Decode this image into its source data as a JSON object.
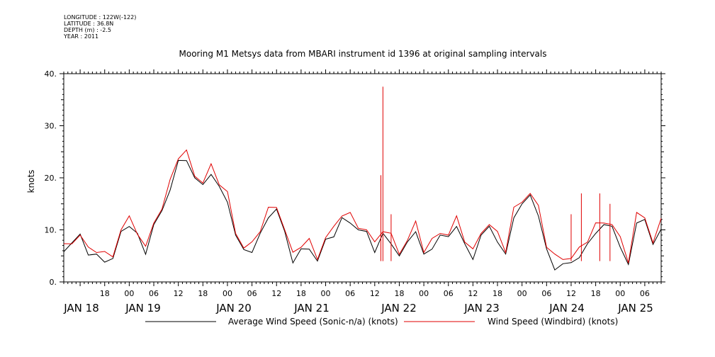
{
  "metadata": {
    "longitude": "LONGITUDE : 122W(-122)",
    "latitude": "LATITUDE : 36.8N",
    "depth": "DEPTH (m) : -2.5",
    "year": "YEAR : 2011"
  },
  "chart_data": {
    "type": "line",
    "title": "Mooring M1 Metsys data from MBARI instrument id 1396 at original sampling intervals",
    "ylabel": "knots",
    "xlabel": "",
    "ylim": [
      0,
      40
    ],
    "yticks": [
      0,
      10,
      20,
      30,
      40
    ],
    "ytick_labels": [
      "0.",
      "10.",
      "20.",
      "30.",
      "40."
    ],
    "xlim_hours": [
      -4,
      142
    ],
    "hour_labels": [
      {
        "h": 6,
        "label": "18"
      },
      {
        "h": 12,
        "label": "00"
      },
      {
        "h": 18,
        "label": "06"
      },
      {
        "h": 24,
        "label": "12"
      },
      {
        "h": 30,
        "label": "18"
      },
      {
        "h": 36,
        "label": "00"
      },
      {
        "h": 42,
        "label": "06"
      },
      {
        "h": 48,
        "label": "12"
      },
      {
        "h": 54,
        "label": "18"
      },
      {
        "h": 60,
        "label": "00"
      },
      {
        "h": 66,
        "label": "06"
      },
      {
        "h": 72,
        "label": "12"
      },
      {
        "h": 78,
        "label": "18"
      },
      {
        "h": 84,
        "label": "00"
      },
      {
        "h": 90,
        "label": "06"
      },
      {
        "h": 96,
        "label": "12"
      },
      {
        "h": 102,
        "label": "18"
      },
      {
        "h": 108,
        "label": "00"
      },
      {
        "h": 114,
        "label": "06"
      },
      {
        "h": 120,
        "label": "12"
      },
      {
        "h": 126,
        "label": "18"
      },
      {
        "h": 132,
        "label": "00"
      },
      {
        "h": 138,
        "label": "06"
      },
      {
        "h": 144,
        "label": "12"
      }
    ],
    "day_labels": [
      {
        "h": 0,
        "label": "JAN 18"
      },
      {
        "h": 24,
        "label": "JAN 19"
      },
      {
        "h": 48,
        "label": "JAN 20"
      },
      {
        "h": 72,
        "label": "JAN 21"
      },
      {
        "h": 96,
        "label": "JAN 22"
      },
      {
        "h": 120,
        "label": "JAN 23"
      },
      {
        "h": 144,
        "label": "JAN 24"
      },
      {
        "h": 168,
        "label": "JAN 25"
      }
    ],
    "series": [
      {
        "name": "Average Wind Speed (Sonic-n/a) (knots)",
        "color": "#000000",
        "x": [
          -4,
          -2,
          0,
          2,
          4,
          6,
          8,
          10,
          12,
          14,
          16,
          18,
          20,
          22,
          24,
          26,
          28,
          30,
          32,
          34,
          36,
          38,
          40,
          42,
          44,
          46,
          48,
          50,
          52,
          54,
          56,
          58,
          60,
          62,
          64,
          66,
          68,
          70,
          72,
          74,
          76,
          78,
          80,
          82,
          84,
          86,
          88,
          90,
          92,
          94,
          96,
          98,
          100,
          102,
          104,
          106,
          108,
          110,
          112,
          114,
          116,
          118,
          120,
          122,
          124,
          126,
          128,
          130,
          132,
          134,
          136,
          138,
          140,
          142
        ],
        "values": [
          6.5,
          7.5,
          8.5,
          5.5,
          5,
          4.5,
          4.5,
          9,
          11,
          9,
          6,
          11,
          13,
          18,
          23,
          24,
          20,
          18,
          21,
          18,
          16,
          9,
          5.5,
          6,
          9,
          13,
          14,
          9,
          4,
          6,
          7,
          4,
          7.5,
          9,
          12,
          12,
          10,
          9,
          6,
          9,
          8,
          5,
          7,
          10,
          5,
          7,
          9,
          8,
          11,
          7,
          5,
          9,
          10,
          8,
          5,
          13,
          15,
          16,
          13,
          6,
          3,
          3.5,
          3,
          5,
          7,
          10,
          11,
          10,
          7,
          3,
          12,
          12,
          6.5,
          10.5
        ]
      },
      {
        "name": "Wind Speed (Windbird) (knots)",
        "color": "#e00000",
        "x": [
          -4,
          -2,
          0,
          2,
          4,
          6,
          8,
          10,
          12,
          14,
          16,
          18,
          20,
          22,
          24,
          26,
          28,
          30,
          32,
          34,
          36,
          38,
          40,
          42,
          44,
          46,
          48,
          50,
          52,
          54,
          56,
          58,
          60,
          62,
          64,
          66,
          68,
          70,
          72,
          74,
          76,
          78,
          80,
          82,
          84,
          86,
          88,
          90,
          92,
          94,
          96,
          98,
          100,
          102,
          104,
          106,
          108,
          110,
          112,
          114,
          116,
          118,
          120,
          122,
          124,
          126,
          128,
          130,
          132,
          134,
          136,
          138,
          140,
          142
        ],
        "values": [
          7,
          8,
          9,
          6,
          6,
          5.5,
          5.5,
          10,
          12,
          9.5,
          6.5,
          12,
          14,
          19,
          24,
          25,
          21,
          19,
          22,
          19,
          17,
          10,
          6.5,
          7,
          10,
          14,
          15,
          10,
          5,
          7,
          8,
          5,
          8.5,
          10,
          13,
          13,
          11,
          10,
          7,
          10,
          9,
          6,
          8,
          11,
          6,
          8,
          10,
          9,
          12,
          8,
          6,
          10,
          11,
          9,
          6,
          14,
          16,
          17,
          14,
          7,
          5,
          5,
          4.5,
          6,
          8,
          11,
          12,
          11,
          8,
          4,
          13,
          13,
          7.5,
          11.5
        ],
        "spikes": [
          {
            "x": 74,
            "value": 37.5
          },
          {
            "x": 73.5,
            "value": 20.5
          },
          {
            "x": 76,
            "value": 13
          },
          {
            "x": 120,
            "value": 13
          },
          {
            "x": 122.5,
            "value": 17
          },
          {
            "x": 127,
            "value": 17
          },
          {
            "x": 129.5,
            "value": 15
          }
        ]
      }
    ],
    "legend_position": "bottom"
  }
}
